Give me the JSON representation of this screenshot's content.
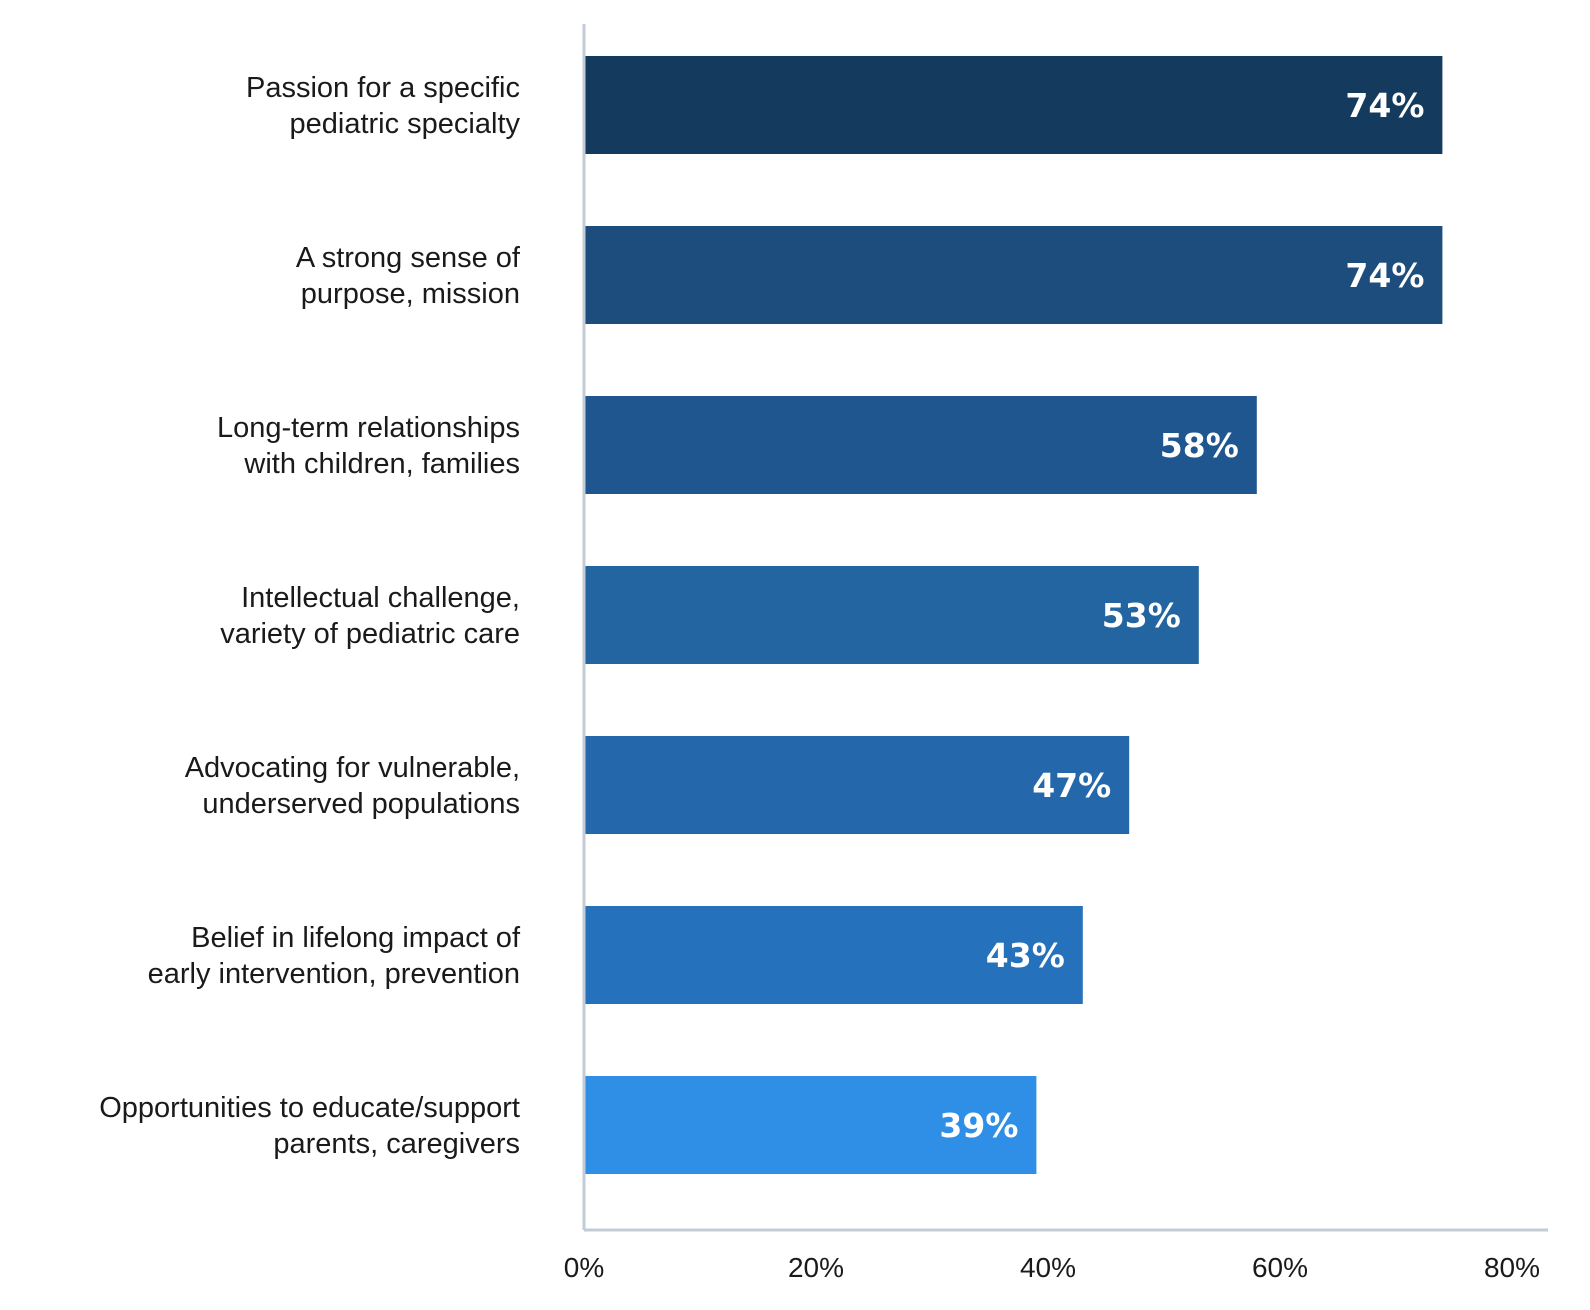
{
  "chart_data": {
    "type": "bar",
    "orientation": "horizontal",
    "title": "",
    "xlabel": "",
    "ylabel": "",
    "xlim": [
      0,
      80
    ],
    "grid": false,
    "legend": "none",
    "categories": [
      [
        "Passion for a specific",
        "pediatric specialty"
      ],
      [
        "A strong sense of",
        "purpose, mission"
      ],
      [
        "Long-term relationships",
        "with children, families"
      ],
      [
        "Intellectual challenge,",
        "variety of pediatric care"
      ],
      [
        "Advocating for vulnerable,",
        "underserved populations"
      ],
      [
        "Belief in lifelong impact of",
        "early intervention, prevention"
      ],
      [
        "Opportunities to educate/support",
        "parents, caregivers"
      ]
    ],
    "values": [
      74,
      74,
      58,
      53,
      47,
      43,
      39
    ],
    "data_labels": [
      "74%",
      "74%",
      "58%",
      "53%",
      "47%",
      "43%",
      "39%"
    ],
    "colors": [
      "#143a5e",
      "#1d4d7d",
      "#1f5690",
      "#2265a0",
      "#2467aa",
      "#2571bb",
      "#2f8fe6"
    ],
    "x_ticks": [
      0,
      20,
      40,
      60,
      80
    ],
    "x_tick_labels": [
      "0%",
      "20%",
      "40%",
      "60%",
      "80%"
    ],
    "axis_color": "#c3ccd6"
  }
}
